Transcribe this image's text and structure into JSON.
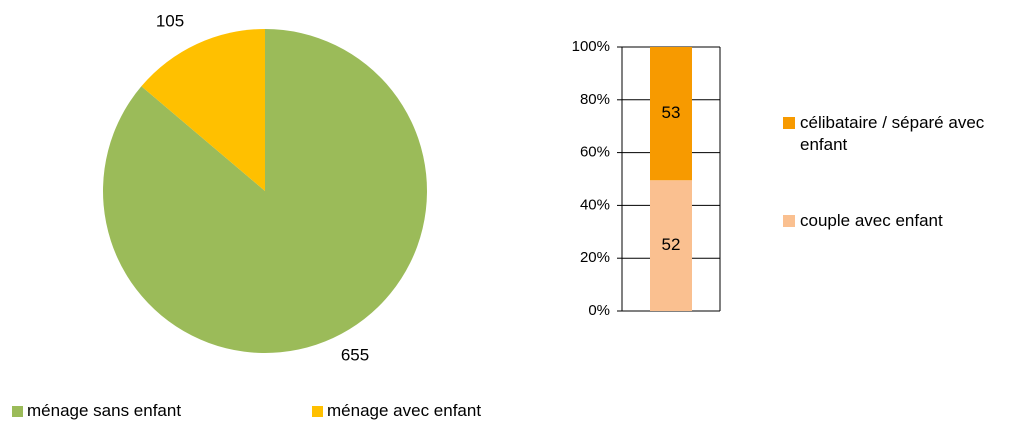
{
  "chart_data": [
    {
      "type": "pie",
      "categories": [
        "ménage sans enfant",
        "ménage avec enfant"
      ],
      "values": [
        655,
        105
      ],
      "colors": [
        "#9bbb59",
        "#ffc000"
      ],
      "legend": "bottom"
    },
    {
      "type": "stacked_percent_bar",
      "series": [
        {
          "name": "couple avec enfant",
          "color": "#fac090",
          "values": [
            52
          ]
        },
        {
          "name": "célibataire / séparé avec enfant",
          "color": "#f79a00",
          "values": [
            53
          ]
        }
      ],
      "ylim": [
        0,
        100
      ],
      "yticks": [
        {
          "value": 0,
          "label": "0%"
        },
        {
          "value": 20,
          "label": "20%"
        },
        {
          "value": 40,
          "label": "40%"
        },
        {
          "value": 60,
          "label": "60%"
        },
        {
          "value": 80,
          "label": "80%"
        },
        {
          "value": 100,
          "label": "100%"
        }
      ],
      "grid": true,
      "legend": "right"
    }
  ]
}
